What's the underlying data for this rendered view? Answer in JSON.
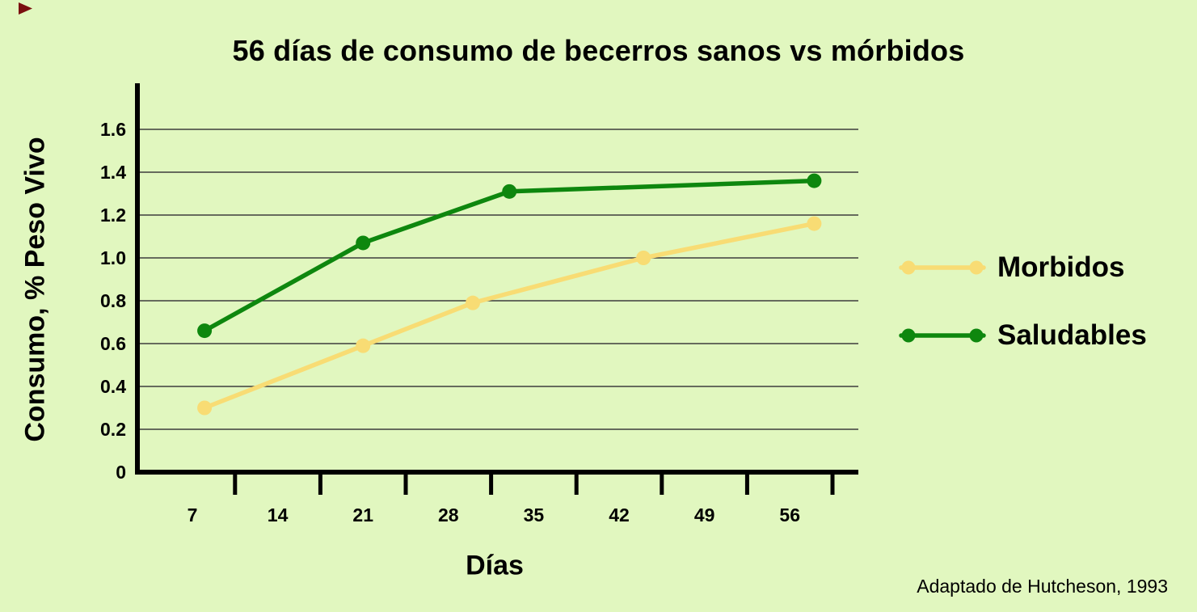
{
  "title": "56 días de consumo de becerros sanos vs mórbidos",
  "source": "Adaptado de Hutcheson, 1993",
  "colors": {
    "background": "#e1f7bf",
    "grid": "#3d3d3d",
    "axis": "#000000",
    "text": "#000000",
    "corner_marker": "#7a0f0f",
    "morbidos": "#f8dc74",
    "saludables": "#0e870e"
  },
  "chart_data": {
    "type": "line",
    "title": "56 días de consumo de becerros sanos vs mórbidos",
    "xlabel": "Días",
    "ylabel": "Consumo, % Peso Vivo",
    "grid": true,
    "legend_position": "right",
    "xlim": [
      2.5,
      61.5
    ],
    "ylim": [
      0,
      1.8
    ],
    "x_tick_days": [
      7,
      14,
      21,
      28,
      35,
      42,
      49,
      56
    ],
    "x_tick_labels": [
      "7",
      "14",
      "21",
      "28",
      "35",
      "42",
      "49",
      "56"
    ],
    "axis_tick_days": [
      10.5,
      17.5,
      24.5,
      31.5,
      38.5,
      45.5,
      52.5,
      59.5
    ],
    "y_ticks": [
      0,
      0.2,
      0.4,
      0.6,
      0.8,
      1.0,
      1.2,
      1.4,
      1.6
    ],
    "y_tick_labels": [
      "0",
      "0.2",
      "0.4",
      "0.6",
      "0.8",
      "1.0",
      "1.2",
      "1.4",
      "1.6"
    ],
    "series": [
      {
        "name": "Morbidos",
        "color": "#f8dc74",
        "x": [
          8,
          21,
          30,
          44,
          58
        ],
        "y": [
          0.3,
          0.59,
          0.79,
          1.0,
          1.16
        ]
      },
      {
        "name": "Saludables",
        "color": "#0e870e",
        "x": [
          8,
          21,
          33,
          58
        ],
        "y": [
          0.66,
          1.07,
          1.31,
          1.36
        ]
      }
    ]
  }
}
